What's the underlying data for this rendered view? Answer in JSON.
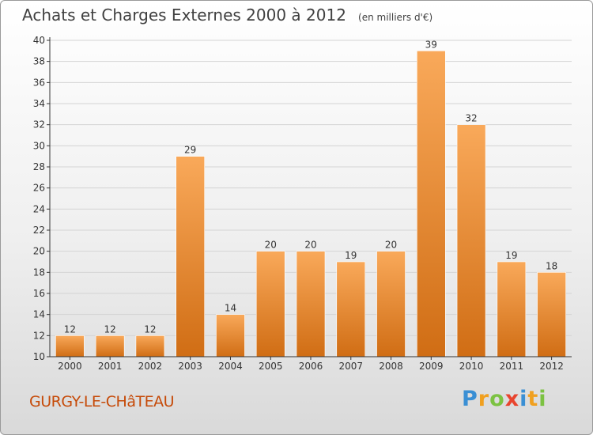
{
  "title": "Achats et Charges Externes 2000 à 2012",
  "unit": "(en milliers d'€)",
  "commune": "GURGY-LE-CHâTEAU",
  "logo": {
    "letters": [
      "P",
      "r",
      "o",
      "x",
      "i",
      "t",
      "i"
    ],
    "colors": [
      "#3a8fd4",
      "#f0a020",
      "#7cc242",
      "#e8442e",
      "#3a8fd4",
      "#f0a020",
      "#7cc242"
    ]
  },
  "colors": {
    "bar_top": "#f9a95a",
    "bar_bottom": "#d06d14",
    "grid": "#d4d4d4",
    "axis": "#333333",
    "text": "#333333"
  },
  "chart_data": {
    "type": "bar",
    "categories": [
      "2000",
      "2001",
      "2002",
      "2003",
      "2004",
      "2005",
      "2006",
      "2007",
      "2008",
      "2009",
      "2010",
      "2011",
      "2012"
    ],
    "values": [
      12,
      12,
      12,
      29,
      14,
      20,
      20,
      19,
      20,
      39,
      32,
      19,
      18
    ],
    "title": "Achats et Charges Externes 2000 à 2012",
    "subtitle": "(en milliers d'€)",
    "ylim": [
      10,
      40
    ],
    "yticks": [
      10,
      12,
      14,
      16,
      18,
      20,
      22,
      24,
      26,
      28,
      30,
      32,
      34,
      36,
      38,
      40
    ],
    "grid": true,
    "data_labels": true
  }
}
